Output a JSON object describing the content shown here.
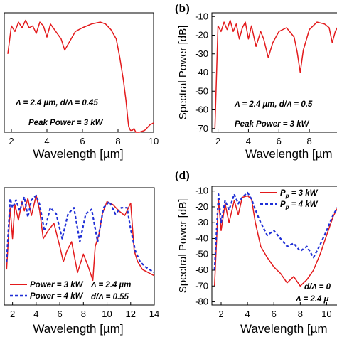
{
  "chart_data": [
    {
      "id": "a",
      "type": "line",
      "panel_label": "",
      "xlabel": "Wavelength [µm]",
      "ylabel": "",
      "xlim": [
        1.6,
        10
      ],
      "ylim": [
        -72,
        -8
      ],
      "xticks": [
        2,
        4,
        6,
        8,
        10
      ],
      "yticks": [],
      "annotations": [
        "Λ = 2.4 µm, d/Λ = 0.45",
        "Peak Power = 3 kW"
      ],
      "series": [
        {
          "color": "#e31a1c",
          "dash": false,
          "x": [
            1.8,
            2.0,
            2.2,
            2.4,
            2.6,
            2.8,
            3.0,
            3.2,
            3.4,
            3.6,
            3.8,
            4.0,
            4.2,
            4.5,
            4.8,
            5.0,
            5.3,
            5.6,
            6.0,
            6.5,
            7.0,
            7.3,
            7.6,
            7.9,
            8.1,
            8.3,
            8.45,
            8.55,
            8.6,
            8.7,
            8.8,
            8.9,
            9.0,
            9.2,
            9.5,
            9.8,
            10.0
          ],
          "y": [
            -30,
            -15,
            -18,
            -13,
            -16,
            -12,
            -16,
            -15,
            -19,
            -13,
            -15,
            -21,
            -14,
            -18,
            -22,
            -28,
            -23,
            -18,
            -16,
            -14,
            -13,
            -14,
            -17,
            -22,
            -32,
            -44,
            -55,
            -65,
            -69,
            -71,
            -71,
            -70,
            -72,
            -72,
            -71,
            -68,
            -67
          ]
        }
      ]
    },
    {
      "id": "b",
      "type": "line",
      "panel_label": "(b)",
      "xlabel": "Wavelength [µm",
      "ylabel": "Spectral Power [dB]",
      "xlim": [
        1.6,
        10
      ],
      "ylim": [
        -72,
        -8
      ],
      "xticks": [
        2,
        4,
        6,
        8
      ],
      "yticks": [
        -10,
        -20,
        -30,
        -40,
        -50,
        -60,
        -70
      ],
      "annotations": [
        "Λ = 2.4 µm, d/Λ = 0.5",
        "Peak Power = 3 kW"
      ],
      "series": [
        {
          "color": "#e31a1c",
          "dash": false,
          "x": [
            1.8,
            2.0,
            2.2,
            2.4,
            2.6,
            2.8,
            3.0,
            3.2,
            3.4,
            3.6,
            3.8,
            4.0,
            4.2,
            4.5,
            4.8,
            5.0,
            5.3,
            5.6,
            6.0,
            6.5,
            7.0,
            7.2,
            7.4,
            7.6,
            8.0,
            8.5,
            9.0,
            9.3,
            9.5,
            9.7,
            9.9
          ],
          "y": [
            -70,
            -15,
            -18,
            -13,
            -17,
            -12,
            -18,
            -14,
            -22,
            -16,
            -13,
            -22,
            -15,
            -26,
            -18,
            -22,
            -32,
            -24,
            -18,
            -16,
            -21,
            -29,
            -40,
            -28,
            -17,
            -13,
            -14,
            -16,
            -24,
            -18,
            -15
          ]
        }
      ]
    },
    {
      "id": "c",
      "type": "line",
      "panel_label": "",
      "xlabel": "Wavelength [µm]",
      "ylabel": "",
      "xlim": [
        1.3,
        14
      ],
      "ylim": [
        -83,
        -7
      ],
      "xticks": [
        2,
        4,
        6,
        8,
        10,
        12,
        14
      ],
      "yticks": [],
      "annotations": [
        "Λ = 2.4 µm",
        "d/Λ = 0.55"
      ],
      "series": [
        {
          "name": "Power = 3 kW",
          "color": "#e31a1c",
          "dash": false,
          "x": [
            1.5,
            1.8,
            2.0,
            2.2,
            2.5,
            2.8,
            3.0,
            3.3,
            3.6,
            4.0,
            4.3,
            4.6,
            5.0,
            5.5,
            6.0,
            6.3,
            6.6,
            7.0,
            7.5,
            8.0,
            8.4,
            8.8,
            9.0,
            9.3,
            9.6,
            10.0,
            10.5,
            11.0,
            11.5,
            12.0,
            12.3,
            12.6,
            13.0,
            13.5,
            14.0
          ],
          "y": [
            -60,
            -20,
            -40,
            -18,
            -28,
            -16,
            -22,
            -14,
            -25,
            -12,
            -22,
            -40,
            -35,
            -30,
            -45,
            -55,
            -48,
            -42,
            -62,
            -50,
            -58,
            -67,
            -45,
            -38,
            -24,
            -16,
            -18,
            -22,
            -25,
            -17,
            -48,
            -55,
            -60,
            -62,
            -64
          ]
        },
        {
          "name": "Power = 4 kW",
          "color": "#1f2fd6",
          "dash": true,
          "x": [
            1.5,
            1.8,
            2.0,
            2.3,
            2.6,
            3.0,
            3.3,
            3.6,
            4.0,
            4.3,
            4.7,
            5.2,
            5.7,
            6.2,
            6.7,
            7.2,
            7.7,
            8.2,
            8.7,
            9.2,
            9.7,
            10.2,
            10.7,
            11.2,
            11.7,
            12.0,
            12.4,
            12.8,
            13.2,
            13.6,
            14.0
          ],
          "y": [
            -55,
            -14,
            -20,
            -15,
            -22,
            -13,
            -26,
            -15,
            -12,
            -18,
            -35,
            -20,
            -24,
            -40,
            -24,
            -20,
            -42,
            -24,
            -21,
            -42,
            -20,
            -16,
            -24,
            -20,
            -20,
            -34,
            -48,
            -55,
            -58,
            -60,
            -62
          ]
        }
      ]
    },
    {
      "id": "d",
      "type": "line",
      "panel_label": "(d)",
      "xlabel": "Wavelength [µm",
      "ylabel": "Spectral Power [dB]",
      "xlim": [
        1.3,
        11
      ],
      "ylim": [
        -82,
        -7
      ],
      "xticks": [
        2,
        4,
        6,
        8,
        10
      ],
      "yticks": [
        -10,
        -20,
        -30,
        -40,
        -50,
        -60,
        -70,
        -80
      ],
      "annotations": [
        "d/Λ = 0",
        "Λ = 2.4 μ"
      ],
      "series": [
        {
          "name": "P_p = 3 kW",
          "color": "#e31a1c",
          "dash": false,
          "x": [
            1.5,
            1.8,
            2.0,
            2.3,
            2.6,
            3.0,
            3.3,
            3.6,
            4.0,
            4.3,
            4.6,
            5.0,
            5.5,
            6.0,
            6.5,
            7.0,
            7.5,
            8.0,
            8.5,
            9.0,
            9.5,
            10.0,
            10.5,
            11.0
          ],
          "y": [
            -70,
            -15,
            -35,
            -18,
            -30,
            -16,
            -25,
            -14,
            -13,
            -15,
            -30,
            -45,
            -52,
            -58,
            -62,
            -68,
            -64,
            -70,
            -66,
            -60,
            -50,
            -38,
            -26,
            -18
          ]
        },
        {
          "name": "P_p = 4 kW",
          "color": "#1f2fd6",
          "dash": true,
          "x": [
            1.5,
            1.8,
            2.0,
            2.3,
            2.6,
            3.0,
            3.3,
            3.6,
            4.0,
            4.3,
            4.7,
            5.0,
            5.5,
            6.0,
            6.5,
            7.0,
            7.5,
            8.0,
            8.5,
            9.0,
            9.5,
            10.0,
            10.5,
            11.0
          ],
          "y": [
            -60,
            -12,
            -30,
            -16,
            -22,
            -12,
            -18,
            -14,
            -11,
            -15,
            -24,
            -30,
            -38,
            -35,
            -40,
            -45,
            -43,
            -48,
            -45,
            -52,
            -44,
            -35,
            -25,
            -18
          ]
        }
      ]
    }
  ],
  "legend_c": [
    "Power = 3 kW",
    "Power = 4 kW"
  ],
  "legend_d": {
    "entries": [
      {
        "symbol": "P",
        "subscript": "p",
        "rest": " = 3 kW"
      },
      {
        "symbol": "P",
        "subscript": "p",
        "rest": " = 4 kW"
      }
    ]
  }
}
